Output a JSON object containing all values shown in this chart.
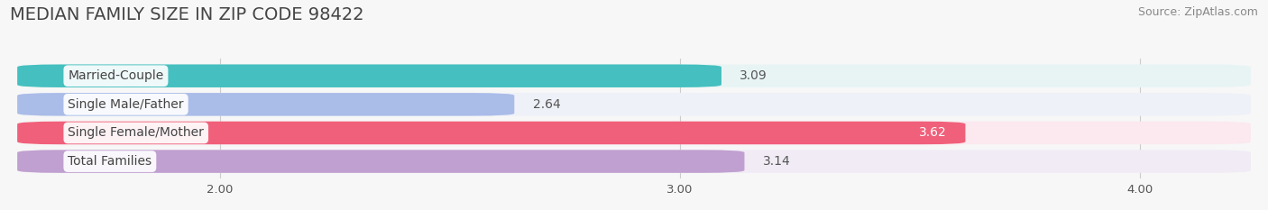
{
  "title": "MEDIAN FAMILY SIZE IN ZIP CODE 98422",
  "source": "Source: ZipAtlas.com",
  "categories": [
    "Married-Couple",
    "Single Male/Father",
    "Single Female/Mother",
    "Total Families"
  ],
  "values": [
    3.09,
    2.64,
    3.62,
    3.14
  ],
  "bar_colors": [
    "#45BFBF",
    "#AABCE8",
    "#F0607A",
    "#C0A0D0"
  ],
  "bar_bg_colors": [
    "#E8F4F4",
    "#EEF1F8",
    "#FCE8EF",
    "#F0EBF5"
  ],
  "value_colors": [
    "#555555",
    "#555555",
    "#ffffff",
    "#555555"
  ],
  "xlim_left": 1.55,
  "xlim_right": 4.25,
  "xticks": [
    2.0,
    3.0,
    4.0
  ],
  "xtick_labels": [
    "2.00",
    "3.00",
    "4.00"
  ],
  "title_fontsize": 14,
  "source_fontsize": 9,
  "bar_height": 0.62,
  "label_fontsize": 10,
  "value_fontsize": 10
}
